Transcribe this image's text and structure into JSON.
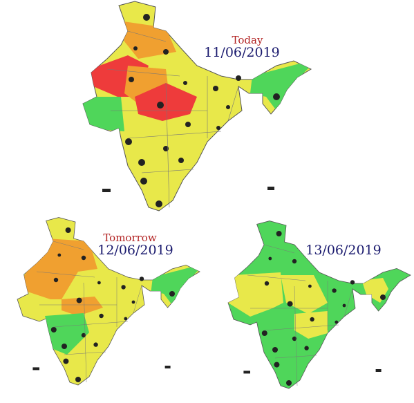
{
  "maps": [
    {
      "label": "Today",
      "date": "11/06/2019"
    },
    {
      "label": "Tomorrow",
      "date": "12/06/2019"
    },
    {
      "date": "13/06/2019"
    }
  ]
}
